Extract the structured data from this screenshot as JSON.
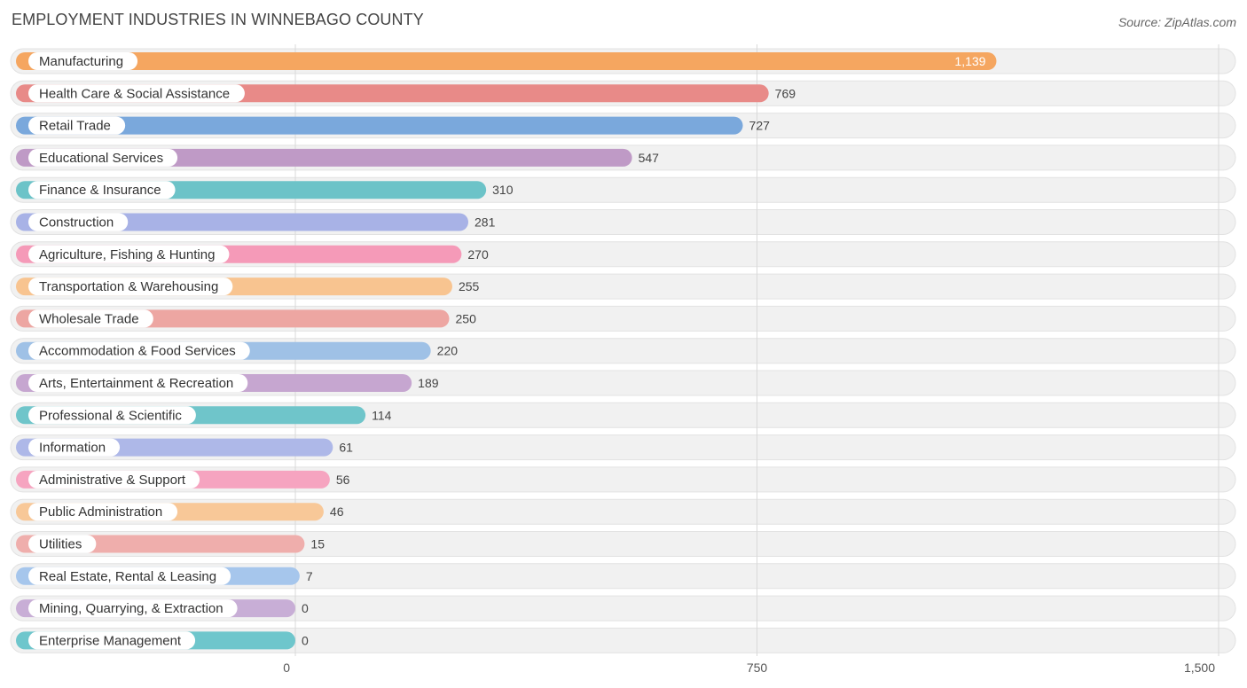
{
  "chart_data": {
    "type": "bar",
    "orientation": "horizontal",
    "title": "EMPLOYMENT INDUSTRIES IN WINNEBAGO COUNTY",
    "source": "Source: ZipAtlas.com",
    "xlim": [
      0,
      1500
    ],
    "ticks": [
      {
        "value": 0,
        "label": "0"
      },
      {
        "value": 750,
        "label": "750"
      },
      {
        "value": 1500,
        "label": "1,500"
      }
    ],
    "categories": [
      "Manufacturing",
      "Health Care & Social Assistance",
      "Retail Trade",
      "Educational Services",
      "Finance & Insurance",
      "Construction",
      "Agriculture, Fishing & Hunting",
      "Transportation & Warehousing",
      "Wholesale Trade",
      "Accommodation & Food Services",
      "Arts, Entertainment & Recreation",
      "Professional & Scientific",
      "Information",
      "Administrative & Support",
      "Public Administration",
      "Utilities",
      "Real Estate, Rental & Leasing",
      "Mining, Quarrying, & Extraction",
      "Enterprise Management"
    ],
    "values": [
      1139,
      769,
      727,
      547,
      310,
      281,
      270,
      255,
      250,
      220,
      189,
      114,
      61,
      56,
      46,
      15,
      7,
      0,
      0
    ],
    "value_labels": [
      "1,139",
      "769",
      "727",
      "547",
      "310",
      "281",
      "270",
      "255",
      "250",
      "220",
      "189",
      "114",
      "61",
      "56",
      "46",
      "15",
      "7",
      "0",
      "0"
    ],
    "colors": [
      "#f5a660",
      "#e88a88",
      "#7aa8dc",
      "#bf9ac6",
      "#6cc3c8",
      "#a8b2e6",
      "#f59ab8",
      "#f8c490",
      "#eda6a2",
      "#9fc1e6",
      "#c6a6d0",
      "#6fc5ca",
      "#aeb8e8",
      "#f6a4c0",
      "#f8c898",
      "#efaeac",
      "#a6c6ec",
      "#c8aed6",
      "#6ec6cc"
    ],
    "grid": true,
    "legend": "none"
  }
}
